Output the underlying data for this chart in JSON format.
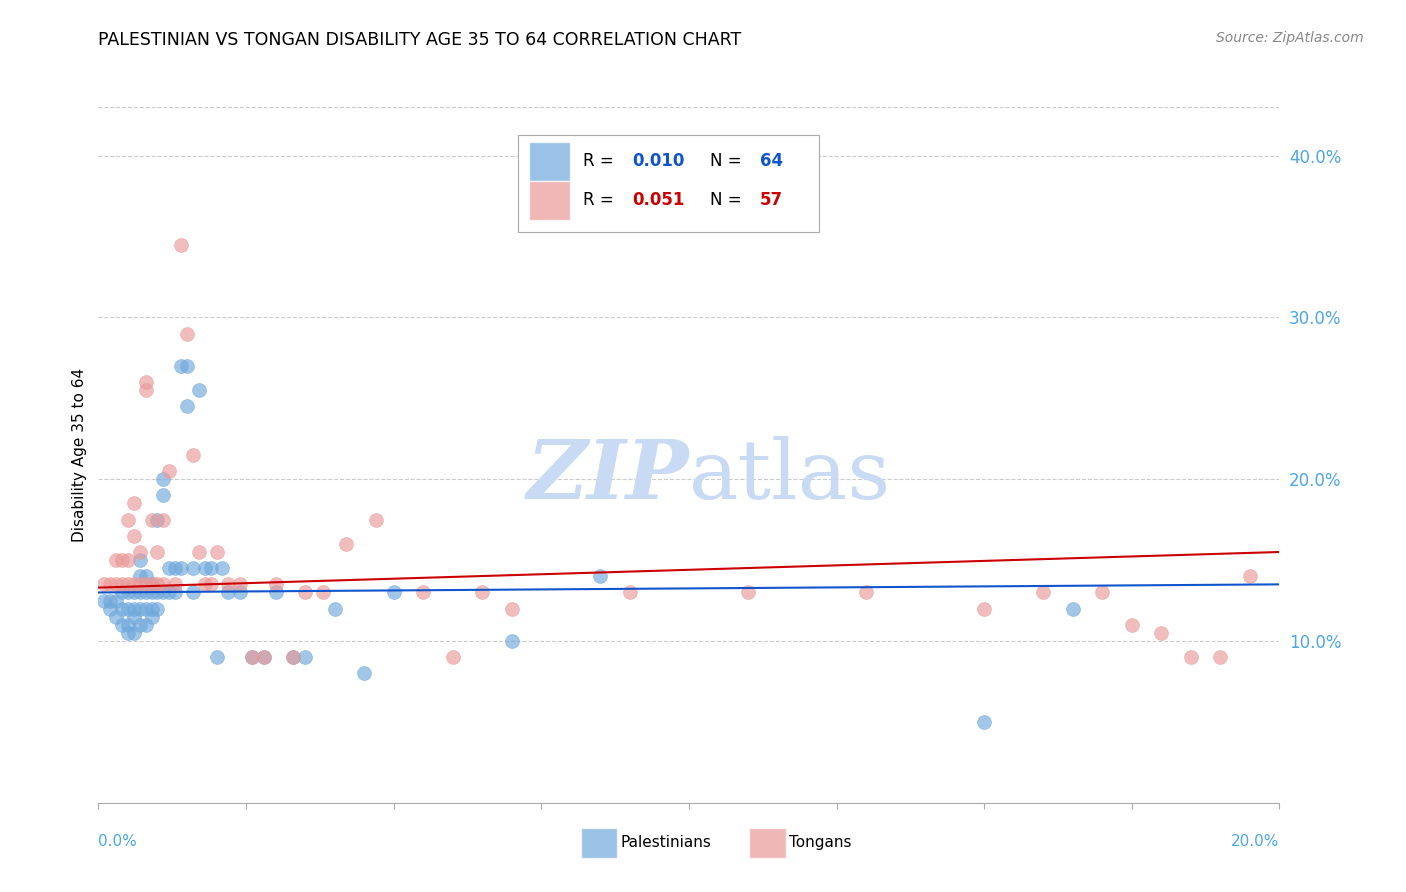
{
  "title": "PALESTINIAN VS TONGAN DISABILITY AGE 35 TO 64 CORRELATION CHART",
  "source": "Source: ZipAtlas.com",
  "ylabel": "Disability Age 35 to 64",
  "xlim": [
    0.0,
    0.2
  ],
  "ylim": [
    0.0,
    0.43
  ],
  "ytick_values": [
    0.1,
    0.2,
    0.3,
    0.4
  ],
  "pal_color": "#6fa8dc",
  "pal_edge_color": "#6fa8dc",
  "ton_color": "#ea9999",
  "ton_edge_color": "#ea9999",
  "pal_trend_color": "#1155cc",
  "ton_trend_color": "#cc0000",
  "grid_color": "#cccccc",
  "watermark_color": "#c8daf4",
  "tick_label_color": "#4da6e8",
  "palestinians_x": [
    0.001,
    0.002,
    0.002,
    0.003,
    0.003,
    0.004,
    0.004,
    0.004,
    0.005,
    0.005,
    0.005,
    0.005,
    0.006,
    0.006,
    0.006,
    0.006,
    0.007,
    0.007,
    0.007,
    0.007,
    0.007,
    0.008,
    0.008,
    0.008,
    0.008,
    0.009,
    0.009,
    0.009,
    0.009,
    0.01,
    0.01,
    0.01,
    0.011,
    0.011,
    0.011,
    0.012,
    0.012,
    0.013,
    0.013,
    0.014,
    0.014,
    0.015,
    0.015,
    0.016,
    0.016,
    0.017,
    0.018,
    0.019,
    0.02,
    0.021,
    0.022,
    0.024,
    0.026,
    0.028,
    0.03,
    0.033,
    0.035,
    0.04,
    0.045,
    0.05,
    0.07,
    0.085,
    0.15,
    0.165
  ],
  "palestinians_y": [
    0.125,
    0.125,
    0.12,
    0.125,
    0.115,
    0.13,
    0.12,
    0.11,
    0.13,
    0.12,
    0.11,
    0.105,
    0.13,
    0.12,
    0.115,
    0.105,
    0.15,
    0.14,
    0.13,
    0.12,
    0.11,
    0.14,
    0.13,
    0.12,
    0.11,
    0.135,
    0.13,
    0.12,
    0.115,
    0.175,
    0.13,
    0.12,
    0.2,
    0.19,
    0.13,
    0.145,
    0.13,
    0.145,
    0.13,
    0.27,
    0.145,
    0.27,
    0.245,
    0.145,
    0.13,
    0.255,
    0.145,
    0.145,
    0.09,
    0.145,
    0.13,
    0.13,
    0.09,
    0.09,
    0.13,
    0.09,
    0.09,
    0.12,
    0.08,
    0.13,
    0.1,
    0.14,
    0.05,
    0.12
  ],
  "tongans_x": [
    0.001,
    0.002,
    0.003,
    0.003,
    0.004,
    0.004,
    0.005,
    0.005,
    0.005,
    0.006,
    0.006,
    0.006,
    0.007,
    0.007,
    0.008,
    0.008,
    0.008,
    0.009,
    0.009,
    0.01,
    0.01,
    0.011,
    0.011,
    0.012,
    0.013,
    0.014,
    0.015,
    0.016,
    0.017,
    0.018,
    0.019,
    0.02,
    0.022,
    0.024,
    0.026,
    0.028,
    0.03,
    0.033,
    0.035,
    0.038,
    0.042,
    0.047,
    0.055,
    0.06,
    0.065,
    0.07,
    0.09,
    0.11,
    0.13,
    0.15,
    0.16,
    0.17,
    0.175,
    0.18,
    0.185,
    0.19,
    0.195
  ],
  "tongans_y": [
    0.135,
    0.135,
    0.15,
    0.135,
    0.15,
    0.135,
    0.175,
    0.15,
    0.135,
    0.185,
    0.165,
    0.135,
    0.155,
    0.135,
    0.26,
    0.255,
    0.135,
    0.175,
    0.135,
    0.155,
    0.135,
    0.175,
    0.135,
    0.205,
    0.135,
    0.345,
    0.29,
    0.215,
    0.155,
    0.135,
    0.135,
    0.155,
    0.135,
    0.135,
    0.09,
    0.09,
    0.135,
    0.09,
    0.13,
    0.13,
    0.16,
    0.175,
    0.13,
    0.09,
    0.13,
    0.12,
    0.13,
    0.13,
    0.13,
    0.12,
    0.13,
    0.13,
    0.11,
    0.105,
    0.09,
    0.09,
    0.14
  ],
  "pal_trend_x": [
    0.0,
    0.2
  ],
  "pal_trend_y": [
    0.13,
    0.135
  ],
  "ton_trend_x": [
    0.0,
    0.2
  ],
  "ton_trend_y": [
    0.133,
    0.155
  ]
}
